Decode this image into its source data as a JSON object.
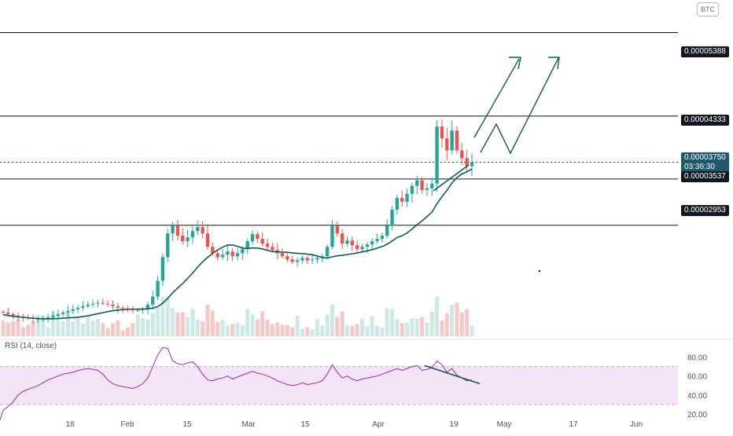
{
  "currency_badge": "BTC",
  "rsi_title": "RSI (14, close)",
  "price_tags": {
    "p1": "0.00005388",
    "p2": "0.00004333",
    "current_price": "0.00003750",
    "countdown": "03:36:30",
    "p3": "0.00003537",
    "p4": "0.00002953"
  },
  "colors": {
    "up": "#26a69a",
    "down": "#ef5350",
    "ma": "#0e5a5c",
    "annotation": "#0e5a5c",
    "rsi_line": "#9c27b0",
    "rsi_band": "#f3e5f5",
    "horizontal_line": "#131722"
  },
  "chart_data": {
    "type": "candlestick",
    "x_tick_labels": [
      "18",
      "Feb",
      "15",
      "Mar",
      "15",
      "Apr",
      "19",
      "May",
      "17",
      "Jun"
    ],
    "price_levels": [
      5.388e-05,
      4.333e-05,
      3.75e-05,
      3.537e-05,
      2.953e-05
    ],
    "current_price": 3.75e-05,
    "price_range_estimate": [
      1.55e-05,
      5.8e-05
    ],
    "candles_close": [
      1.85e-05,
      1.83e-05,
      1.81e-05,
      1.8e-05,
      1.79e-05,
      1.78e-05,
      1.77e-05,
      1.77e-05,
      1.78e-05,
      1.79e-05,
      1.81e-05,
      1.83e-05,
      1.85e-05,
      1.87e-05,
      1.89e-05,
      1.91e-05,
      1.93e-05,
      1.95e-05,
      1.96e-05,
      1.97e-05,
      1.96e-05,
      1.95e-05,
      1.93e-05,
      1.91e-05,
      1.9e-05,
      1.89e-05,
      1.88e-05,
      1.88e-05,
      1.89e-05,
      1.95e-05,
      2.05e-05,
      2.25e-05,
      2.55e-05,
      2.85e-05,
      2.95e-05,
      2.82e-05,
      2.75e-05,
      2.8e-05,
      2.88e-05,
      2.93e-05,
      2.85e-05,
      2.68e-05,
      2.6e-05,
      2.55e-05,
      2.58e-05,
      2.62e-05,
      2.56e-05,
      2.6e-05,
      2.65e-05,
      2.75e-05,
      2.84e-05,
      2.78e-05,
      2.72e-05,
      2.68e-05,
      2.64e-05,
      2.6e-05,
      2.56e-05,
      2.52e-05,
      2.49e-05,
      2.51e-05,
      2.54e-05,
      2.51e-05,
      2.52e-05,
      2.54e-05,
      2.56e-05,
      2.68e-05,
      2.95e-05,
      2.85e-05,
      2.72e-05,
      2.76e-05,
      2.7e-05,
      2.65e-05,
      2.68e-05,
      2.71e-05,
      2.75e-05,
      2.78e-05,
      2.82e-05,
      2.95e-05,
      3.15e-05,
      3.3e-05,
      3.25e-05,
      3.35e-05,
      3.45e-05,
      3.52e-05,
      3.4e-05,
      3.42e-05,
      3.48e-05,
      4.2e-05,
      4.05e-05,
      3.9e-05,
      4.15e-05,
      3.9e-05,
      3.8e-05,
      3.7e-05,
      3.75e-05
    ],
    "moving_average_end": 3.55e-05,
    "volume_relative": "tall bars mid-February, late March and mid-April",
    "rsi": {
      "name": "RSI (14, close)",
      "y_ticks": [
        80.0,
        60.0,
        40.0,
        20.0
      ],
      "band": [
        30,
        70
      ],
      "values": [
        24,
        28,
        33,
        40,
        44,
        46,
        48,
        50,
        53,
        56,
        58,
        60,
        62,
        63,
        64,
        66,
        67,
        68,
        67,
        66,
        62,
        56,
        52,
        50,
        49,
        48,
        47,
        49,
        52,
        58,
        70,
        82,
        90,
        89,
        76,
        73,
        72,
        74,
        75,
        70,
        62,
        56,
        55,
        57,
        58,
        60,
        57,
        59,
        61,
        63,
        65,
        63,
        62,
        60,
        58,
        55,
        53,
        51,
        50,
        51,
        53,
        51,
        52,
        53,
        55,
        62,
        72,
        64,
        58,
        60,
        57,
        55,
        57,
        58,
        59,
        60,
        62,
        64,
        66,
        68,
        66,
        68,
        70,
        71,
        66,
        67,
        69,
        76,
        72,
        64,
        68,
        61,
        58,
        55,
        56
      ]
    }
  }
}
